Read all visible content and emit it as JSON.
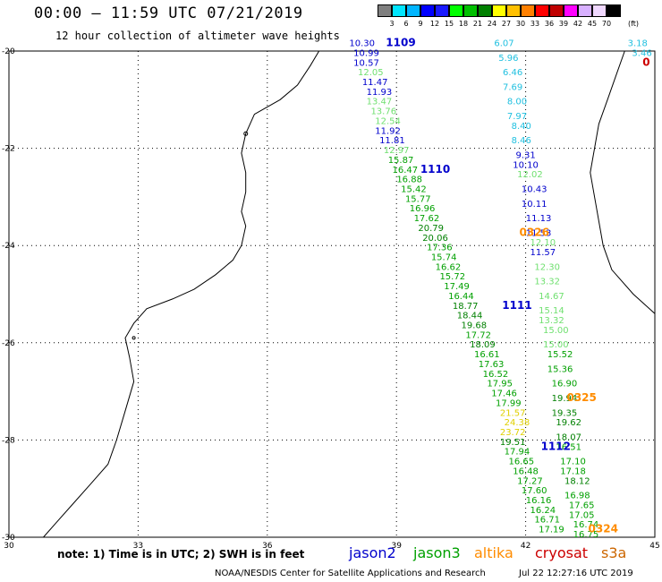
{
  "header": {
    "title": "00:00 — 11:59 UTC 07/21/2019",
    "subtitle": "12 hour collection of altimeter wave heights"
  },
  "colorbar": {
    "unit": "(ft)",
    "labels": [
      "3",
      "6",
      "9",
      "12",
      "15",
      "18",
      "21",
      "24",
      "27",
      "30",
      "33",
      "36",
      "39",
      "42",
      "45",
      "70"
    ],
    "colors": [
      "#7f7f7f",
      "#00e5ff",
      "#00b5ff",
      "#0000ff",
      "#1a1aff",
      "#00ff00",
      "#00c000",
      "#008000",
      "#ffff00",
      "#ffc000",
      "#ff8000",
      "#ff0000",
      "#c00000",
      "#ff00ff",
      "#d8b0ff",
      "#f0d8ff",
      "#000000"
    ]
  },
  "map": {
    "x_ticks": [
      "30",
      "33",
      "36",
      "39",
      "42",
      "45"
    ],
    "y_ticks": [
      "-20",
      "-22",
      "-24",
      "-26",
      "-28",
      "-30"
    ],
    "x_range": [
      30,
      45
    ],
    "y_range": [
      -30,
      -20
    ],
    "track_colors": {
      "jason2": "#0000cc",
      "jason3": "#00a000",
      "altika": "#ff8c00",
      "cryosat": "#cc0000",
      "s3a": "#cc6600",
      "blue": "#0000ff",
      "lightblue": "#00b0d0",
      "cyan": "#20c0e0",
      "lightgreen": "#70e070",
      "green": "#00a000",
      "darkgreen": "#008000",
      "yellow": "#e0d000",
      "orange": "#ff8c00"
    },
    "pass_labels": [
      {
        "text": "1109",
        "lon": 39.1,
        "lat": -19.9,
        "color": "jason2"
      },
      {
        "text": "1110",
        "lon": 39.9,
        "lat": -22.5,
        "color": "jason2"
      },
      {
        "text": "0326",
        "lon": 42.2,
        "lat": -23.8,
        "color": "altika"
      },
      {
        "text": "1111",
        "lon": 41.8,
        "lat": -25.3,
        "color": "jason2"
      },
      {
        "text": "0325",
        "lon": 43.3,
        "lat": -27.2,
        "color": "altika"
      },
      {
        "text": "1112",
        "lon": 42.7,
        "lat": -28.2,
        "color": "jason2"
      },
      {
        "text": "0324",
        "lon": 43.8,
        "lat": -29.9,
        "color": "altika"
      },
      {
        "text": "0",
        "lon": 44.8,
        "lat": -20.3,
        "color": "cryosat"
      }
    ],
    "tracks": [
      {
        "name": "track-a",
        "points": [
          {
            "v": "10.30",
            "lon": 38.2,
            "lat": -19.9,
            "c": "jason2"
          },
          {
            "v": "10.99",
            "lon": 38.3,
            "lat": -20.1,
            "c": "jason2"
          },
          {
            "v": "10.57",
            "lon": 38.3,
            "lat": -20.3,
            "c": "jason2"
          },
          {
            "v": "12.05",
            "lon": 38.4,
            "lat": -20.5,
            "c": "lightgreen"
          },
          {
            "v": "11.47",
            "lon": 38.5,
            "lat": -20.7,
            "c": "jason2"
          },
          {
            "v": "11.93",
            "lon": 38.6,
            "lat": -20.9,
            "c": "jason2"
          },
          {
            "v": "13.47",
            "lon": 38.6,
            "lat": -21.1,
            "c": "lightgreen"
          },
          {
            "v": "13.76",
            "lon": 38.7,
            "lat": -21.3,
            "c": "lightgreen"
          },
          {
            "v": "12.54",
            "lon": 38.8,
            "lat": -21.5,
            "c": "lightgreen"
          },
          {
            "v": "11.92",
            "lon": 38.8,
            "lat": -21.7,
            "c": "jason2"
          },
          {
            "v": "11.81",
            "lon": 38.9,
            "lat": -21.9,
            "c": "jason2"
          },
          {
            "v": "12.97",
            "lon": 39.0,
            "lat": -22.1,
            "c": "lightgreen"
          },
          {
            "v": "15.87",
            "lon": 39.1,
            "lat": -22.3,
            "c": "green"
          },
          {
            "v": "16.47",
            "lon": 39.2,
            "lat": -22.5,
            "c": "green"
          },
          {
            "v": "16.88",
            "lon": 39.3,
            "lat": -22.7,
            "c": "green"
          },
          {
            "v": "15.42",
            "lon": 39.4,
            "lat": -22.9,
            "c": "green"
          },
          {
            "v": "15.77",
            "lon": 39.5,
            "lat": -23.1,
            "c": "green"
          },
          {
            "v": "16.96",
            "lon": 39.6,
            "lat": -23.3,
            "c": "green"
          },
          {
            "v": "17.62",
            "lon": 39.7,
            "lat": -23.5,
            "c": "green"
          },
          {
            "v": "20.79",
            "lon": 39.8,
            "lat": -23.7,
            "c": "darkgreen"
          },
          {
            "v": "20.06",
            "lon": 39.9,
            "lat": -23.9,
            "c": "darkgreen"
          },
          {
            "v": "17.36",
            "lon": 40.0,
            "lat": -24.1,
            "c": "green"
          },
          {
            "v": "15.74",
            "lon": 40.1,
            "lat": -24.3,
            "c": "green"
          },
          {
            "v": "16.62",
            "lon": 40.2,
            "lat": -24.5,
            "c": "green"
          },
          {
            "v": "15.72",
            "lon": 40.3,
            "lat": -24.7,
            "c": "green"
          },
          {
            "v": "17.49",
            "lon": 40.4,
            "lat": -24.9,
            "c": "green"
          },
          {
            "v": "16.44",
            "lon": 40.5,
            "lat": -25.1,
            "c": "green"
          },
          {
            "v": "18.77",
            "lon": 40.6,
            "lat": -25.3,
            "c": "darkgreen"
          },
          {
            "v": "18.44",
            "lon": 40.7,
            "lat": -25.5,
            "c": "darkgreen"
          },
          {
            "v": "19.68",
            "lon": 40.8,
            "lat": -25.7,
            "c": "darkgreen"
          },
          {
            "v": "17.72",
            "lon": 40.9,
            "lat": -25.9,
            "c": "green"
          },
          {
            "v": "18.09",
            "lon": 41.0,
            "lat": -26.1,
            "c": "darkgreen"
          },
          {
            "v": "16.61",
            "lon": 41.1,
            "lat": -26.3,
            "c": "green"
          },
          {
            "v": "17.63",
            "lon": 41.2,
            "lat": -26.5,
            "c": "green"
          },
          {
            "v": "16.52",
            "lon": 41.3,
            "lat": -26.7,
            "c": "green"
          },
          {
            "v": "17.95",
            "lon": 41.4,
            "lat": -26.9,
            "c": "green"
          },
          {
            "v": "17.46",
            "lon": 41.5,
            "lat": -27.1,
            "c": "green"
          },
          {
            "v": "17.99",
            "lon": 41.6,
            "lat": -27.3,
            "c": "green"
          },
          {
            "v": "21.57",
            "lon": 41.7,
            "lat": -27.5,
            "c": "yellow"
          },
          {
            "v": "24.38",
            "lon": 41.8,
            "lat": -27.7,
            "c": "yellow"
          },
          {
            "v": "23.72",
            "lon": 41.7,
            "lat": -27.9,
            "c": "yellow"
          },
          {
            "v": "19.51",
            "lon": 41.7,
            "lat": -28.1,
            "c": "darkgreen"
          },
          {
            "v": "17.94",
            "lon": 41.8,
            "lat": -28.3,
            "c": "green"
          },
          {
            "v": "16.65",
            "lon": 41.9,
            "lat": -28.5,
            "c": "green"
          },
          {
            "v": "16.48",
            "lon": 42.0,
            "lat": -28.7,
            "c": "green"
          },
          {
            "v": "17.27",
            "lon": 42.1,
            "lat": -28.9,
            "c": "green"
          },
          {
            "v": "17.60",
            "lon": 42.2,
            "lat": -29.1,
            "c": "green"
          },
          {
            "v": "16.16",
            "lon": 42.3,
            "lat": -29.3,
            "c": "green"
          },
          {
            "v": "16.24",
            "lon": 42.4,
            "lat": -29.5,
            "c": "green"
          },
          {
            "v": "16.71",
            "lon": 42.5,
            "lat": -29.7,
            "c": "green"
          },
          {
            "v": "17.19",
            "lon": 42.6,
            "lat": -29.9,
            "c": "green"
          }
        ]
      },
      {
        "name": "track-b",
        "points": [
          {
            "v": "6.07",
            "lon": 41.5,
            "lat": -19.9,
            "c": "cyan"
          },
          {
            "v": "5.96",
            "lon": 41.6,
            "lat": -20.2,
            "c": "cyan"
          },
          {
            "v": "6.46",
            "lon": 41.7,
            "lat": -20.5,
            "c": "cyan"
          },
          {
            "v": "7.69",
            "lon": 41.7,
            "lat": -20.8,
            "c": "cyan"
          },
          {
            "v": "8.00",
            "lon": 41.8,
            "lat": -21.1,
            "c": "cyan"
          },
          {
            "v": "7.97",
            "lon": 41.8,
            "lat": -21.4,
            "c": "cyan"
          },
          {
            "v": "8.40",
            "lon": 41.9,
            "lat": -21.6,
            "c": "cyan"
          },
          {
            "v": "8.46",
            "lon": 41.9,
            "lat": -21.9,
            "c": "cyan"
          },
          {
            "v": "9.31",
            "lon": 42.0,
            "lat": -22.2,
            "c": "jason2"
          },
          {
            "v": "10.10",
            "lon": 42.0,
            "lat": -22.4,
            "c": "jason2"
          },
          {
            "v": "12.02",
            "lon": 42.1,
            "lat": -22.6,
            "c": "lightgreen"
          },
          {
            "v": "10.43",
            "lon": 42.2,
            "lat": -22.9,
            "c": "jason2"
          },
          {
            "v": "10.11",
            "lon": 42.2,
            "lat": -23.2,
            "c": "jason2"
          },
          {
            "v": "11.13",
            "lon": 42.3,
            "lat": -23.5,
            "c": "jason2"
          },
          {
            "v": "11.53",
            "lon": 42.3,
            "lat": -23.8,
            "c": "jason2"
          },
          {
            "v": "12.10",
            "lon": 42.4,
            "lat": -24.0,
            "c": "lightgreen"
          },
          {
            "v": "11.57",
            "lon": 42.4,
            "lat": -24.2,
            "c": "jason2"
          },
          {
            "v": "12.30",
            "lon": 42.5,
            "lat": -24.5,
            "c": "lightgreen"
          },
          {
            "v": "13.32",
            "lon": 42.5,
            "lat": -24.8,
            "c": "lightgreen"
          },
          {
            "v": "14.67",
            "lon": 42.6,
            "lat": -25.1,
            "c": "lightgreen"
          },
          {
            "v": "15.14",
            "lon": 42.6,
            "lat": -25.4,
            "c": "lightgreen"
          },
          {
            "v": "13.32",
            "lon": 42.6,
            "lat": -25.6,
            "c": "lightgreen"
          },
          {
            "v": "15.00",
            "lon": 42.7,
            "lat": -25.8,
            "c": "lightgreen"
          },
          {
            "v": "15.00",
            "lon": 42.7,
            "lat": -26.1,
            "c": "lightgreen"
          },
          {
            "v": "15.52",
            "lon": 42.8,
            "lat": -26.3,
            "c": "green"
          },
          {
            "v": "15.36",
            "lon": 42.8,
            "lat": -26.6,
            "c": "green"
          },
          {
            "v": "16.90",
            "lon": 42.9,
            "lat": -26.9,
            "c": "green"
          },
          {
            "v": "19.94",
            "lon": 42.9,
            "lat": -27.2,
            "c": "darkgreen"
          },
          {
            "v": "19.35",
            "lon": 42.9,
            "lat": -27.5,
            "c": "darkgreen"
          },
          {
            "v": "19.62",
            "lon": 43.0,
            "lat": -27.7,
            "c": "darkgreen"
          },
          {
            "v": "18.07",
            "lon": 43.0,
            "lat": -28.0,
            "c": "darkgreen"
          },
          {
            "v": "16.51",
            "lon": 43.0,
            "lat": -28.2,
            "c": "green"
          },
          {
            "v": "17.10",
            "lon": 43.1,
            "lat": -28.5,
            "c": "green"
          },
          {
            "v": "17.18",
            "lon": 43.1,
            "lat": -28.7,
            "c": "green"
          },
          {
            "v": "18.12",
            "lon": 43.2,
            "lat": -28.9,
            "c": "darkgreen"
          },
          {
            "v": "16.98",
            "lon": 43.2,
            "lat": -29.2,
            "c": "green"
          },
          {
            "v": "17.65",
            "lon": 43.3,
            "lat": -29.4,
            "c": "green"
          },
          {
            "v": "17.05",
            "lon": 43.3,
            "lat": -29.6,
            "c": "green"
          },
          {
            "v": "16.74",
            "lon": 43.4,
            "lat": -29.8,
            "c": "green"
          },
          {
            "v": "16.75",
            "lon": 43.4,
            "lat": -30.0,
            "c": "green"
          }
        ]
      },
      {
        "name": "track-c",
        "points": [
          {
            "v": "3.18",
            "lon": 44.6,
            "lat": -19.9,
            "c": "cyan"
          },
          {
            "v": "3.46",
            "lon": 44.7,
            "lat": -20.1,
            "c": "cyan"
          }
        ]
      }
    ]
  },
  "note": "note: 1) Time is in UTC; 2) SWH is in feet",
  "legend": [
    {
      "label": "jason2",
      "color": "#0000cc"
    },
    {
      "label": "jason3",
      "color": "#00a000"
    },
    {
      "label": "altika",
      "color": "#ff8c00"
    },
    {
      "label": "cryosat",
      "color": "#cc0000"
    },
    {
      "label": "s3a",
      "color": "#cc6600"
    }
  ],
  "footer": {
    "credit": "NOAA/NESDIS Center for Satellite Applications and Research",
    "timestamp": "Jul 22 12:27:16 UTC 2019"
  }
}
